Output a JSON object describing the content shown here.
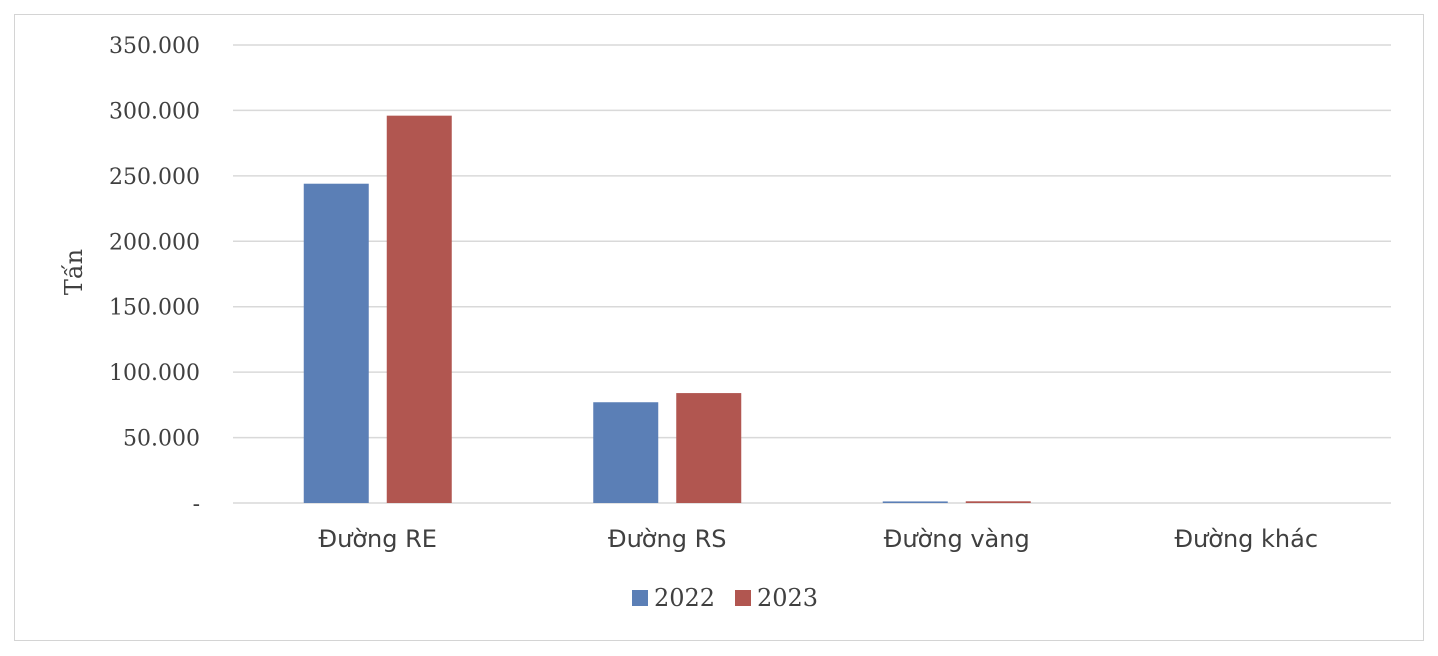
{
  "chart_data": {
    "type": "bar",
    "ylabel": "Tấn",
    "xlabel": "",
    "categories": [
      "Đường RE",
      "Đường RS",
      "Đường vàng",
      "Đường khác"
    ],
    "series": [
      {
        "name": "2022",
        "color": "#5b7fb6",
        "values": [
          244000,
          77000,
          1200,
          0
        ]
      },
      {
        "name": "2023",
        "color": "#b15650",
        "values": [
          296000,
          84000,
          1300,
          0
        ]
      }
    ],
    "ylim": [
      0,
      350000
    ],
    "yticks": [
      {
        "value": 0,
        "label": "-"
      },
      {
        "value": 50000,
        "label": "50.000"
      },
      {
        "value": 100000,
        "label": "100.000"
      },
      {
        "value": 150000,
        "label": "150.000"
      },
      {
        "value": 200000,
        "label": "200.000"
      },
      {
        "value": 250000,
        "label": "250.000"
      },
      {
        "value": 300000,
        "label": "300.000"
      },
      {
        "value": 350000,
        "label": "350.000"
      }
    ],
    "grid": true,
    "legend_position": "bottom",
    "gridline_color": "#d9d9d9",
    "axis_color": "#d9d9d9"
  }
}
